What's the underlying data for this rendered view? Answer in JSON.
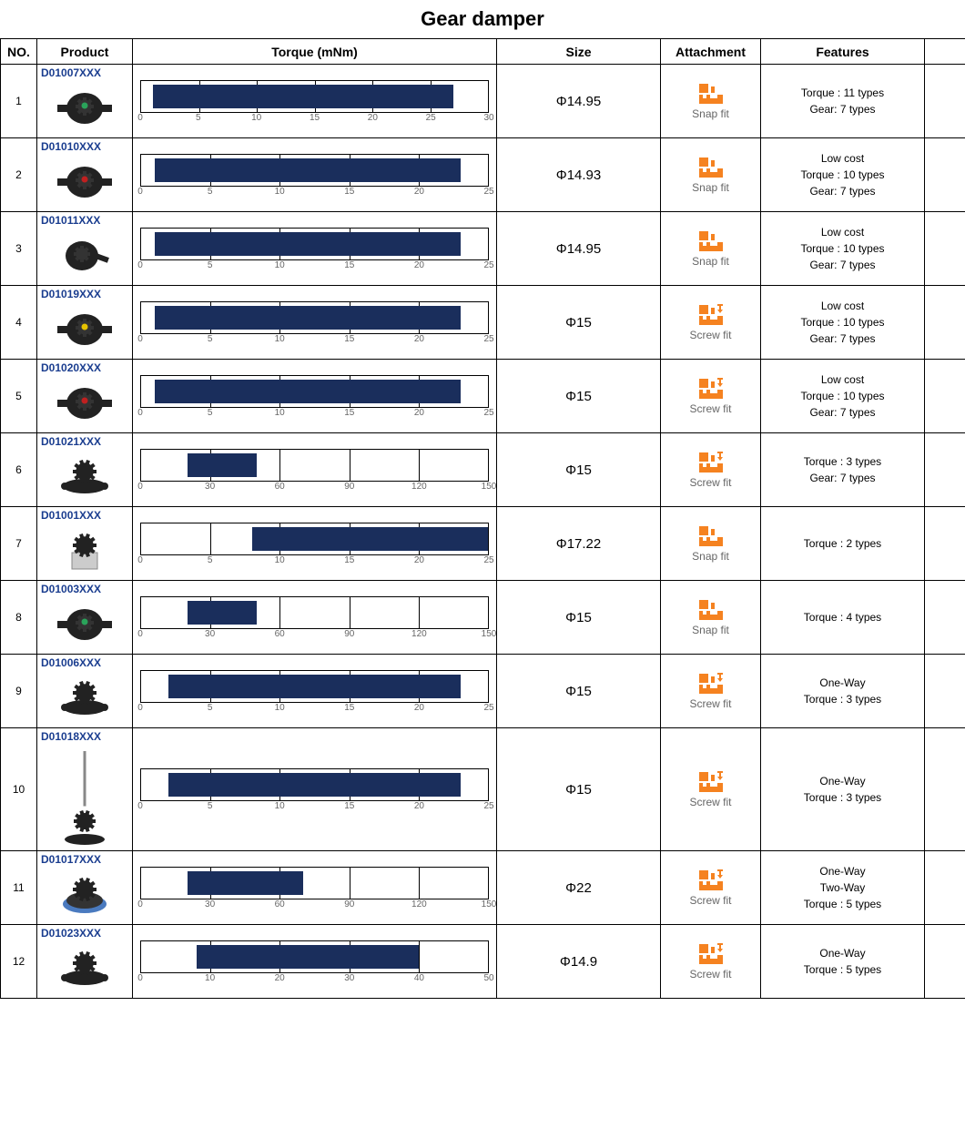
{
  "title": "Gear damper",
  "columns": [
    "NO.",
    "Product",
    "Torque (mNm)",
    "Size",
    "Attachment",
    "Features",
    ""
  ],
  "colors": {
    "bar_fill": "#1a2e5c",
    "product_link": "#1a3d8f",
    "icon_fill": "#f58220",
    "tick_label": "#666666",
    "border": "#000000"
  },
  "attachment_types": {
    "snap": "Snap fit",
    "screw": "Screw fit"
  },
  "rows": [
    {
      "no": 1,
      "code": "D01007XXX",
      "img": "gear_tabs",
      "dot": "#2aa35a",
      "torque": {
        "max": 30,
        "step": 5,
        "bar_start": 1,
        "bar_end": 27
      },
      "size": "Φ14.95",
      "attachment": "snap",
      "features": [
        "Torque : 11 types",
        "Gear: 7 types"
      ],
      "tall": false
    },
    {
      "no": 2,
      "code": "D01010XXX",
      "img": "gear_tabs",
      "dot": "#c02020",
      "torque": {
        "max": 25,
        "step": 5,
        "bar_start": 1,
        "bar_end": 23
      },
      "size": "Φ14.93",
      "attachment": "snap",
      "features": [
        "Low cost",
        "Torque : 10 types",
        "Gear: 7 types"
      ],
      "tall": false
    },
    {
      "no": 3,
      "code": "D01011XXX",
      "img": "gear_arm",
      "dot": null,
      "torque": {
        "max": 25,
        "step": 5,
        "bar_start": 1,
        "bar_end": 23
      },
      "size": "Φ14.95",
      "attachment": "snap",
      "features": [
        "Low cost",
        "Torque : 10 types",
        "Gear: 7 types"
      ],
      "tall": false
    },
    {
      "no": 4,
      "code": "D01019XXX",
      "img": "gear_ears",
      "dot": "#e6c200",
      "torque": {
        "max": 25,
        "step": 5,
        "bar_start": 1,
        "bar_end": 23
      },
      "size": "Φ15",
      "attachment": "screw",
      "features": [
        "Low cost",
        "Torque : 10 types",
        "Gear: 7 types"
      ],
      "tall": false
    },
    {
      "no": 5,
      "code": "D01020XXX",
      "img": "gear_ears",
      "dot": "#c02020",
      "torque": {
        "max": 25,
        "step": 5,
        "bar_start": 1,
        "bar_end": 23
      },
      "size": "Φ15",
      "attachment": "screw",
      "features": [
        "Low cost",
        "Torque : 10 types",
        "Gear: 7 types"
      ],
      "tall": false
    },
    {
      "no": 6,
      "code": "D01021XXX",
      "img": "gear_top_ears",
      "dot": null,
      "torque": {
        "max": 150,
        "step": 30,
        "bar_start": 20,
        "bar_end": 50
      },
      "size": "Φ15",
      "attachment": "screw",
      "features": [
        "Torque : 3 types",
        "Gear: 7 types"
      ],
      "tall": false
    },
    {
      "no": 7,
      "code": "D01001XXX",
      "img": "gear_clear",
      "dot": null,
      "torque": {
        "max": 25,
        "step": 5,
        "bar_start": 8,
        "bar_end": 25
      },
      "size": "Φ17.22",
      "attachment": "snap",
      "features": [
        "Torque : 2 types"
      ],
      "tall": false
    },
    {
      "no": 8,
      "code": "D01003XXX",
      "img": "gear_tabs",
      "dot": "#2aa35a",
      "torque": {
        "max": 150,
        "step": 30,
        "bar_start": 20,
        "bar_end": 50
      },
      "size": "Φ15",
      "attachment": "snap",
      "features": [
        "Torque : 4 types"
      ],
      "tall": false
    },
    {
      "no": 9,
      "code": "D01006XXX",
      "img": "gear_top_ears",
      "dot": null,
      "torque": {
        "max": 25,
        "step": 5,
        "bar_start": 2,
        "bar_end": 23
      },
      "size": "Φ15",
      "attachment": "screw",
      "features": [
        "One-Way",
        "Torque : 3 types"
      ],
      "tall": false
    },
    {
      "no": 10,
      "code": "D01018XXX",
      "img": "gear_shaft",
      "dot": null,
      "torque": {
        "max": 25,
        "step": 5,
        "bar_start": 2,
        "bar_end": 23
      },
      "size": "Φ15",
      "attachment": "screw",
      "features": [
        "One-Way",
        "Torque : 3 types"
      ],
      "tall": true
    },
    {
      "no": 11,
      "code": "D01017XXX",
      "img": "gear_blue",
      "dot": null,
      "torque": {
        "max": 150,
        "step": 30,
        "bar_start": 20,
        "bar_end": 70
      },
      "size": "Φ22",
      "attachment": "screw",
      "features": [
        "One-Way",
        "Two-Way",
        "Torque : 5 types"
      ],
      "tall": false
    },
    {
      "no": 12,
      "code": "D01023XXX",
      "img": "gear_top_base",
      "dot": null,
      "torque": {
        "max": 50,
        "step": 10,
        "bar_start": 8,
        "bar_end": 40
      },
      "size": "Φ14.9",
      "attachment": "screw",
      "features": [
        "One-Way",
        "Torque : 5 types"
      ],
      "tall": false
    }
  ]
}
